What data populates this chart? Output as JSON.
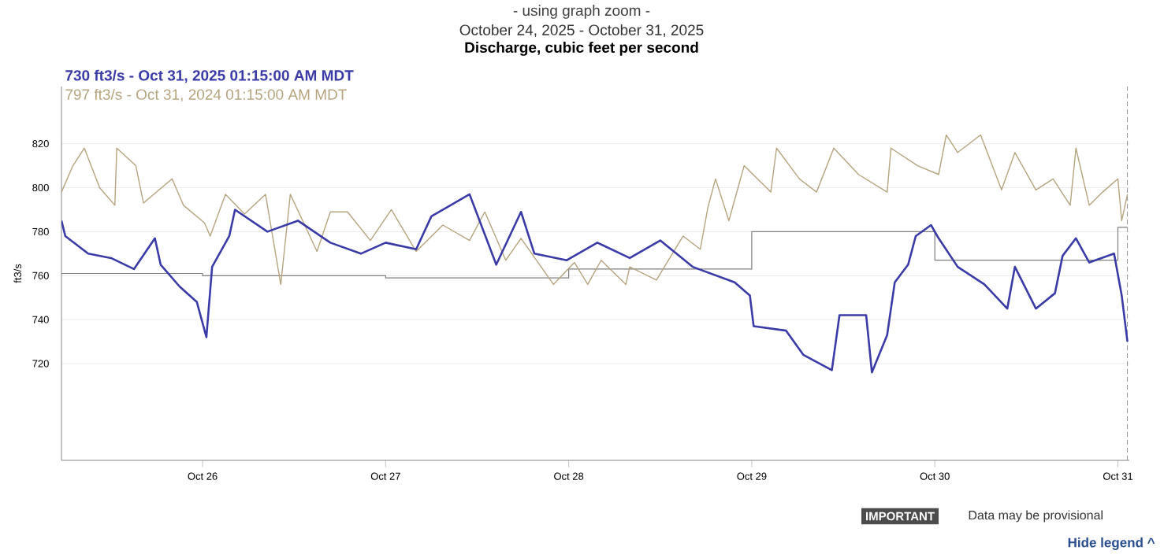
{
  "chart_data": {
    "type": "line",
    "title": "Discharge, cubic feet per second",
    "subtitle": "October 24, 2025 - October 31, 2025",
    "ylabel": "ft3/s",
    "annotations": [
      "- using graph zoom -",
      "IMPORTANT",
      "Data may be provisional",
      "Hide legend ^"
    ],
    "xlim": [
      "2025-10-25T05:30",
      "2025-10-31T01:30"
    ],
    "xticks": [
      {
        "value": "2025-10-26",
        "label": "Oct 26"
      },
      {
        "value": "2025-10-27",
        "label": "Oct 27"
      },
      {
        "value": "2025-10-28",
        "label": "Oct 28"
      },
      {
        "value": "2025-10-29",
        "label": "Oct 29"
      },
      {
        "value": "2025-10-30",
        "label": "Oct 30"
      },
      {
        "value": "2025-10-31",
        "label": "Oct 31"
      }
    ],
    "ylim": [
      676,
      846
    ],
    "yticks": [
      720,
      740,
      760,
      780,
      800,
      820
    ],
    "grid": "y",
    "legend": "top left",
    "ref_lines": [
      {
        "axis": "x",
        "value": "2025-10-31T01:15",
        "color": "#9a9a9a",
        "line_style": "dashed"
      }
    ],
    "series": [
      {
        "type": "step",
        "color": "#7f7f7f",
        "x": [
          "2025-10-25T05:30",
          "2025-10-26T00:00",
          "2025-10-27T00:00",
          "2025-10-28T00:00",
          "2025-10-29T00:00",
          "2025-10-30T00:00",
          "2025-10-31T00:00",
          "2025-10-31T01:15"
        ],
        "values": [
          761,
          760,
          759,
          763,
          780,
          767,
          782,
          782
        ]
      },
      {
        "name": "797 ft3/s - Oct 31, 2024 01:15:00 AM MDT",
        "color": "#b5a47e",
        "x": [
          "2025-10-25T05:30",
          "2025-10-25T07:00",
          "2025-10-25T08:30",
          "2025-10-25T10:30",
          "2025-10-25T12:30",
          "2025-10-25T12:45",
          "2025-10-25T15:15",
          "2025-10-25T16:15",
          "2025-10-25T20:00",
          "2025-10-25T21:30",
          "2025-10-26T00:15",
          "2025-10-26T01:00",
          "2025-10-26T03:00",
          "2025-10-26T05:30",
          "2025-10-26T08:15",
          "2025-10-26T10:15",
          "2025-10-26T11:30",
          "2025-10-26T15:00",
          "2025-10-26T16:45",
          "2025-10-26T19:00",
          "2025-10-26T22:00",
          "2025-10-27T00:45",
          "2025-10-27T04:00",
          "2025-10-27T07:30",
          "2025-10-27T11:00",
          "2025-10-27T13:00",
          "2025-10-27T15:45",
          "2025-10-27T17:45",
          "2025-10-27T22:00",
          "2025-10-28T00:45",
          "2025-10-28T02:30",
          "2025-10-28T04:15",
          "2025-10-28T07:30",
          "2025-10-28T08:00",
          "2025-10-28T11:30",
          "2025-10-28T15:00",
          "2025-10-28T17:15",
          "2025-10-28T18:15",
          "2025-10-28T19:15",
          "2025-10-28T21:00",
          "2025-10-28T23:00",
          "2025-10-29T02:30",
          "2025-10-29T03:15",
          "2025-10-29T06:15",
          "2025-10-29T08:30",
          "2025-10-29T10:45",
          "2025-10-29T14:00",
          "2025-10-29T17:45",
          "2025-10-29T18:15",
          "2025-10-29T21:45",
          "2025-10-30T00:30",
          "2025-10-30T01:30",
          "2025-10-30T03:00",
          "2025-10-30T06:00",
          "2025-10-30T08:45",
          "2025-10-30T10:30",
          "2025-10-30T13:15",
          "2025-10-30T15:30",
          "2025-10-30T17:45",
          "2025-10-30T18:30",
          "2025-10-30T20:15",
          "2025-10-30T22:00",
          "2025-10-31T00:00",
          "2025-10-31T00:30",
          "2025-10-31T01:15"
        ],
        "values": [
          798,
          810,
          818,
          800,
          792,
          818,
          810,
          793,
          804,
          792,
          784,
          778,
          797,
          788,
          797,
          756,
          797,
          771,
          789,
          789,
          776,
          790,
          771,
          783,
          776,
          789,
          767,
          777,
          756,
          766,
          756,
          767,
          756,
          764,
          758,
          778,
          772,
          791,
          804,
          785,
          810,
          798,
          818,
          804,
          798,
          818,
          806,
          798,
          818,
          810,
          806,
          824,
          816,
          824,
          799,
          816,
          799,
          804,
          792,
          818,
          792,
          798,
          804,
          785,
          797
        ]
      },
      {
        "name": "730 ft3/s - Oct 31, 2025 01:15:00 AM MDT",
        "color": "#3b3ba8",
        "x": [
          "2025-10-25T05:30",
          "2025-10-25T06:00",
          "2025-10-25T09:00",
          "2025-10-25T12:00",
          "2025-10-25T15:00",
          "2025-10-25T17:45",
          "2025-10-25T18:30",
          "2025-10-25T21:00",
          "2025-10-25T23:15",
          "2025-10-26T00:30",
          "2025-10-26T01:15",
          "2025-10-26T03:30",
          "2025-10-26T04:15",
          "2025-10-26T08:30",
          "2025-10-26T12:30",
          "2025-10-26T16:45",
          "2025-10-26T20:45",
          "2025-10-27T00:00",
          "2025-10-27T04:00",
          "2025-10-27T06:00",
          "2025-10-27T11:00",
          "2025-10-27T14:30",
          "2025-10-27T17:45",
          "2025-10-27T19:30",
          "2025-10-27T23:45",
          "2025-10-28T03:45",
          "2025-10-28T08:00",
          "2025-10-28T12:00",
          "2025-10-28T16:15",
          "2025-10-28T21:45",
          "2025-10-28T23:45",
          "2025-10-29T00:15",
          "2025-10-29T04:30",
          "2025-10-29T06:45",
          "2025-10-29T10:30",
          "2025-10-29T11:30",
          "2025-10-29T15:00",
          "2025-10-29T15:45",
          "2025-10-29T17:45",
          "2025-10-29T18:45",
          "2025-10-29T20:30",
          "2025-10-29T21:30",
          "2025-10-29T23:30",
          "2025-10-30T00:30",
          "2025-10-30T03:00",
          "2025-10-30T06:30",
          "2025-10-30T09:30",
          "2025-10-30T10:30",
          "2025-10-30T13:15",
          "2025-10-30T15:45",
          "2025-10-30T16:45",
          "2025-10-30T18:30",
          "2025-10-30T20:15",
          "2025-10-30T23:30",
          "2025-10-31T00:30",
          "2025-10-31T01:15"
        ],
        "values": [
          785,
          778,
          770,
          768,
          763,
          777,
          765,
          755,
          748,
          732,
          764,
          778,
          790,
          780,
          785,
          775,
          770,
          775,
          772,
          787,
          797,
          765,
          789,
          770,
          767,
          775,
          768,
          776,
          764,
          757,
          751,
          737,
          735,
          724,
          717,
          742,
          742,
          716,
          733,
          757,
          765,
          778,
          783,
          777,
          764,
          756,
          745,
          764,
          745,
          752,
          769,
          777,
          766,
          770,
          751,
          730
        ]
      }
    ]
  }
}
